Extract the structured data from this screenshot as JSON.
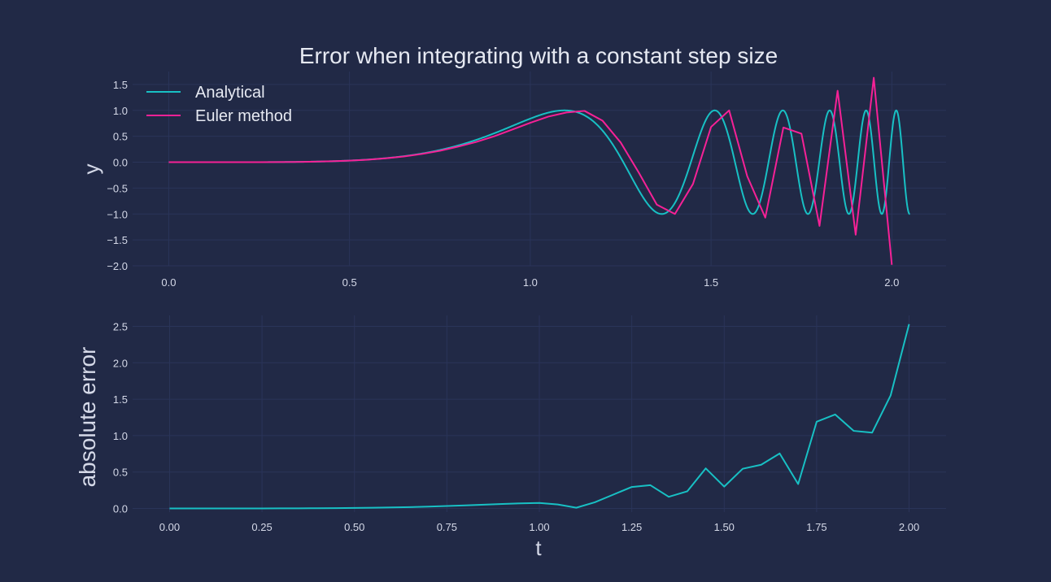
{
  "colors": {
    "background": "#212946",
    "grid": "#2A3459",
    "analytical": "#18c0c4",
    "euler": "#f62196",
    "error": "#18c0c4",
    "text": "#d5d9e8"
  },
  "chart_data": [
    {
      "type": "line",
      "title": "Error when integrating with a constant step size",
      "xlabel": "",
      "ylabel": "y",
      "xlim": [
        -0.1,
        2.15
      ],
      "ylim": [
        -2.0,
        1.75
      ],
      "x_ticks": [
        0.0,
        0.5,
        1.0,
        1.5,
        2.0
      ],
      "x_tick_labels": [
        "0.0",
        "0.5",
        "1.0",
        "1.5",
        "2.0"
      ],
      "y_ticks": [
        1.5,
        1.0,
        0.5,
        0.0,
        -0.5,
        -1.0,
        -1.5,
        -2.0
      ],
      "y_tick_labels": [
        "1.5",
        "1.0",
        "0.5",
        "0.0",
        "−0.5",
        "−1.0",
        "−1.5",
        "−2.0"
      ],
      "grid": true,
      "legend_position": "top-left",
      "series": [
        {
          "name": "Analytical",
          "color": "#18c0c4",
          "function": "sin(t^5)",
          "x_range": [
            0.0,
            2.05
          ]
        },
        {
          "name": "Euler method",
          "color": "#f62196",
          "x": [
            0.0,
            0.05,
            0.1,
            0.15,
            0.2,
            0.25,
            0.3,
            0.35,
            0.4,
            0.45,
            0.5,
            0.55,
            0.6,
            0.65,
            0.7,
            0.75,
            0.8,
            0.85,
            0.9,
            0.95,
            1.0,
            1.05,
            1.1,
            1.15,
            1.2,
            1.25,
            1.3,
            1.35,
            1.4,
            1.45,
            1.5,
            1.55,
            1.6,
            1.65,
            1.7,
            1.75,
            1.8,
            1.85,
            1.9,
            1.95,
            2.0
          ],
          "y": [
            0.0,
            0.0,
            0.0,
            0.0,
            0.0,
            0.001,
            0.002,
            0.005,
            0.01,
            0.018,
            0.03,
            0.048,
            0.075,
            0.11,
            0.16,
            0.22,
            0.3,
            0.39,
            0.5,
            0.63,
            0.76,
            0.88,
            0.96,
            0.99,
            0.8,
            0.38,
            -0.2,
            -0.82,
            -1.0,
            -0.42,
            0.68,
            1.0,
            -0.27,
            -1.07,
            0.67,
            0.55,
            -1.23,
            1.38,
            -1.4,
            1.63,
            -1.98
          ]
        }
      ]
    },
    {
      "type": "line",
      "title": "",
      "xlabel": "t",
      "ylabel": "absolute error",
      "xlim": [
        -0.1,
        2.1
      ],
      "ylim": [
        -0.05,
        2.65
      ],
      "x_ticks": [
        0.0,
        0.25,
        0.5,
        0.75,
        1.0,
        1.25,
        1.5,
        1.75,
        2.0
      ],
      "x_tick_labels": [
        "0.00",
        "0.25",
        "0.50",
        "0.75",
        "1.00",
        "1.25",
        "1.50",
        "1.75",
        "2.00"
      ],
      "y_ticks": [
        2.5,
        2.0,
        1.5,
        1.0,
        0.5,
        0.0
      ],
      "y_tick_labels": [
        "2.5",
        "2.0",
        "1.5",
        "1.0",
        "0.5",
        "0.0"
      ],
      "grid": true,
      "series": [
        {
          "color": "#18c0c4",
          "x": [
            0.0,
            0.05,
            0.1,
            0.15,
            0.2,
            0.25,
            0.3,
            0.35,
            0.4,
            0.45,
            0.5,
            0.55,
            0.6,
            0.65,
            0.7,
            0.75,
            0.8,
            0.85,
            0.9,
            0.95,
            1.0,
            1.05,
            1.1,
            1.15,
            1.2,
            1.25,
            1.3,
            1.35,
            1.4,
            1.45,
            1.5,
            1.55,
            1.6,
            1.65,
            1.7,
            1.75,
            1.8,
            1.85,
            1.9,
            1.95,
            2.0
          ],
          "y": [
            0.0,
            0.0,
            0.0,
            0.0,
            0.0,
            0.0,
            0.001,
            0.002,
            0.003,
            0.005,
            0.007,
            0.01,
            0.014,
            0.019,
            0.025,
            0.033,
            0.042,
            0.052,
            0.062,
            0.07,
            0.075,
            0.055,
            0.01,
            0.085,
            0.19,
            0.295,
            0.32,
            0.16,
            0.235,
            0.55,
            0.3,
            0.545,
            0.6,
            0.755,
            0.335,
            1.19,
            1.29,
            1.065,
            1.04,
            1.55,
            2.53
          ]
        }
      ]
    }
  ]
}
